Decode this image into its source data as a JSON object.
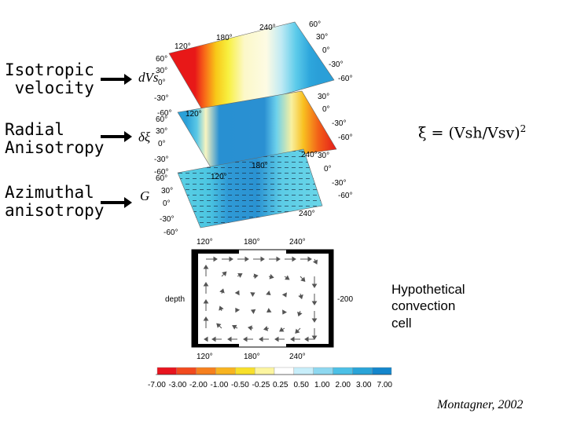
{
  "left_labels": [
    {
      "line1": "Isotropic",
      "line2": " velocity"
    },
    {
      "line1": "Radial",
      "line2": "Anisotropy"
    },
    {
      "line1": "Azimuthal",
      "line2": "anisotropy"
    }
  ],
  "formula": {
    "symbol": "ξ",
    "rest": " = (Vsh/Vsv)",
    "exponent": "2"
  },
  "layer_symbols": [
    "dVs",
    "δξ",
    "G"
  ],
  "map_lon_ticks": [
    "120°",
    "180°",
    "240°"
  ],
  "map_lat_ticks": [
    "60°",
    "30°",
    "0°",
    "-30°",
    "-60°"
  ],
  "map_right_lat_ticks": [
    "60°",
    "30°",
    "0°",
    "-30°",
    "-60°"
  ],
  "section_top_ticks": [
    "120°",
    "180°",
    "240°"
  ],
  "section_bottom_ticks": [
    "120°",
    "180°",
    "240°"
  ],
  "section_depth_label": "depth",
  "section_depth_value": "-200",
  "caption": {
    "line1": "Hypothetical",
    "line2": "convection",
    "line3": "cell"
  },
  "colorbar": {
    "colors": [
      "#e8141e",
      "#f24a1e",
      "#f6801e",
      "#f8b420",
      "#f8e02a",
      "#fcf5a0",
      "#ffffff",
      "#c8eefa",
      "#8ed8f0",
      "#4cc0e6",
      "#2aa4d8",
      "#1486cc"
    ],
    "ticks": [
      "-7.00",
      "-3.00",
      "-2.00",
      "-1.00",
      "-0.50",
      "-0.25",
      "0.25",
      "0.50",
      "1.00",
      "2.00",
      "3.00",
      "7.00"
    ]
  },
  "credit": "Montagner, 2002"
}
